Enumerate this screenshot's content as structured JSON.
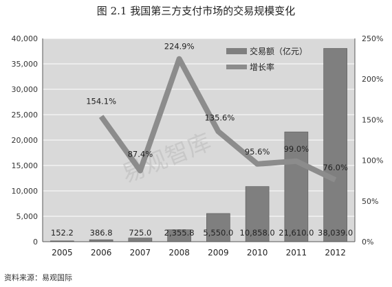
{
  "figure_title": "图 2.1 我国第三方支付市场的交易规模变化",
  "source_note": "资料来源：易观国际",
  "watermark": "易观智库",
  "colors": {
    "plot_bg": "#d9d9d9",
    "bar_fill": "#7f7f7f",
    "bar_edge": "#555555",
    "line": "#8c8c8c",
    "grid": "#ffffff"
  },
  "chart_data": {
    "type": "bar",
    "categories": [
      "2005",
      "2006",
      "2007",
      "2008",
      "2009",
      "2010",
      "2011",
      "2012"
    ],
    "series": [
      {
        "name": "交易额（亿元）",
        "type": "bar",
        "axis": "left",
        "values": [
          152.2,
          386.8,
          725.0,
          2355.8,
          5550.0,
          10858.0,
          21610.0,
          38039.0
        ],
        "labels": [
          "152.2",
          "386.8",
          "725.0",
          "2,355.8",
          "5,550.0",
          "10,858.0",
          "21,610.0",
          "38,039.0"
        ]
      },
      {
        "name": "增长率",
        "type": "line",
        "axis": "right",
        "values": [
          null,
          154.1,
          87.4,
          224.9,
          135.6,
          95.6,
          99.0,
          76.0
        ],
        "labels": [
          "",
          "154.1%",
          "87.4%",
          "224.9%",
          "135.6%",
          "95.6%",
          "99.0%",
          "76.0%"
        ]
      }
    ],
    "y_left": {
      "ylim": [
        0,
        40000
      ],
      "ticks": [
        0,
        5000,
        10000,
        15000,
        20000,
        25000,
        30000,
        35000,
        40000
      ],
      "tick_labels": [
        "0",
        "5,000",
        "10,000",
        "15,000",
        "20,000",
        "25,000",
        "30,000",
        "35,000",
        "40,000"
      ]
    },
    "y_right": {
      "ylim": [
        0,
        250
      ],
      "ticks": [
        0,
        50,
        100,
        150,
        200,
        250
      ],
      "tick_labels": [
        "0%",
        "50%",
        "100%",
        "150%",
        "200%",
        "250%"
      ]
    },
    "grid": true,
    "legend_position": "top-right"
  }
}
